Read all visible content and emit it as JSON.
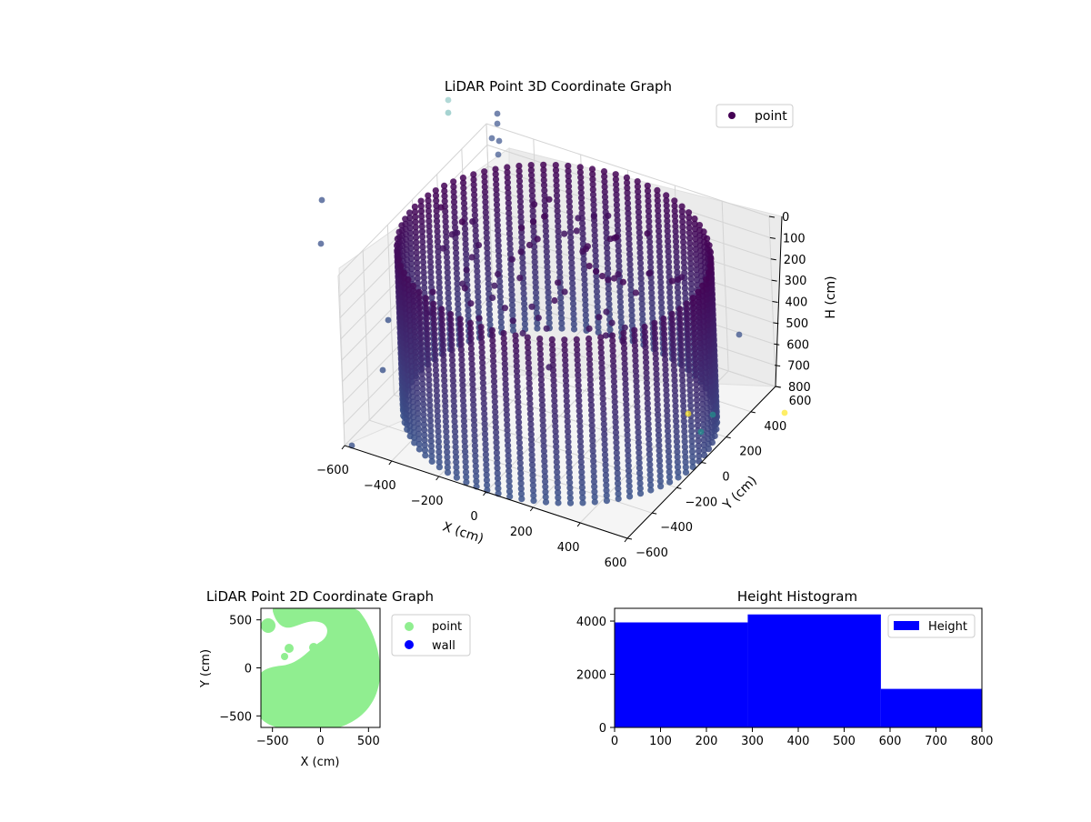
{
  "chart_data": [
    {
      "type": "scatter",
      "projection": "3d",
      "title": "LiDAR Point 3D Coordinate Graph",
      "xlabel": "X (cm)",
      "ylabel": "Y (cm)",
      "zlabel": "H (cm)",
      "xticks": [
        "−600",
        "−400",
        "−200",
        "0",
        "200",
        "400",
        "600"
      ],
      "yticks": [
        "−600",
        "−400",
        "−200",
        "0",
        "200",
        "400",
        "600"
      ],
      "zticks": [
        "0",
        "100",
        "200",
        "300",
        "400",
        "500",
        "600",
        "700",
        "800"
      ],
      "xlim": [
        -600,
        600
      ],
      "ylim": [
        -600,
        600
      ],
      "zlim": [
        800,
        0
      ],
      "legend": {
        "labels": [
          "point"
        ],
        "placement": "upper right"
      },
      "colormap": "viridis",
      "description_of_shape": "cylindrical wall of points, radius about 600 cm, heights 0 to 800 cm",
      "colors": {
        "low": "#440154",
        "mid": "#3b528b",
        "teal": "#21918c",
        "high": "#fde725"
      }
    },
    {
      "type": "scatter",
      "title": "LiDAR Point 2D Coordinate Graph",
      "xlabel": "X (cm)",
      "ylabel": "Y (cm)",
      "xticks": [
        "−500",
        "0",
        "500"
      ],
      "yticks": [
        "500",
        "0",
        "−500"
      ],
      "xlim": [
        -620,
        620
      ],
      "ylim": [
        -620,
        620
      ],
      "legend": {
        "labels": [
          "point",
          "wall"
        ],
        "placement": "outside right"
      },
      "series": [
        {
          "name": "point",
          "color": "#90ee90"
        },
        {
          "name": "wall",
          "color": "#0000ff"
        }
      ]
    },
    {
      "type": "bar",
      "title": "Height Histogram",
      "xticks": [
        "0",
        "100",
        "200",
        "300",
        "400",
        "500",
        "600",
        "700",
        "800"
      ],
      "yticks": [
        "0",
        "2000",
        "4000"
      ],
      "xlim": [
        0,
        800
      ],
      "ylim": [
        0,
        4480
      ],
      "legend": {
        "labels": [
          "Height"
        ],
        "placement": "upper right"
      },
      "bins": [
        {
          "x0": 0,
          "x1": 290,
          "value": 3950
        },
        {
          "x0": 290,
          "x1": 580,
          "value": 4250
        },
        {
          "x0": 580,
          "x1": 800,
          "value": 1450
        }
      ],
      "color": "#0000ff"
    }
  ]
}
